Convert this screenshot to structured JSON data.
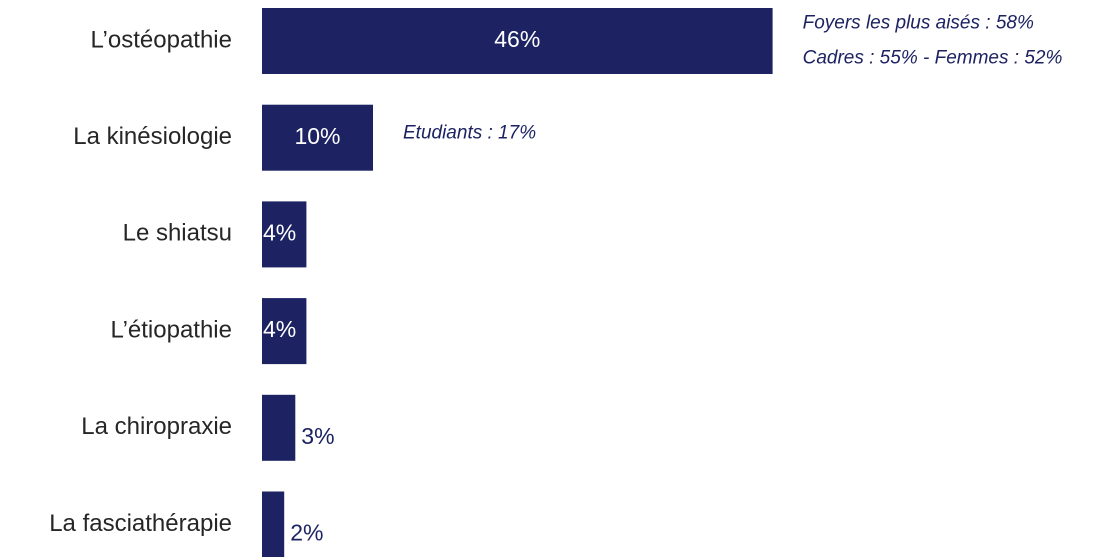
{
  "chart_data": {
    "type": "hbar",
    "categories": [
      "L’ostéopathie",
      "La kinésiologie",
      "Le shiatsu",
      "L’étiopathie",
      "La chiropraxie",
      "La fasciathérapie"
    ],
    "values": [
      46,
      10,
      4,
      4,
      3,
      2
    ],
    "value_labels": [
      "46%",
      "10%",
      "4%",
      "4%",
      "3%",
      "2%"
    ],
    "color": "#1c2262",
    "xlim": [
      0,
      50
    ],
    "annotations": [
      {
        "category": "L’ostéopathie",
        "lines": [
          "Foyers les plus aisés : 58%",
          "Cadres : 55% - Femmes : 52%"
        ]
      },
      {
        "category": "La kinésiologie",
        "lines": [
          "Etudiants : 17%"
        ]
      }
    ]
  }
}
